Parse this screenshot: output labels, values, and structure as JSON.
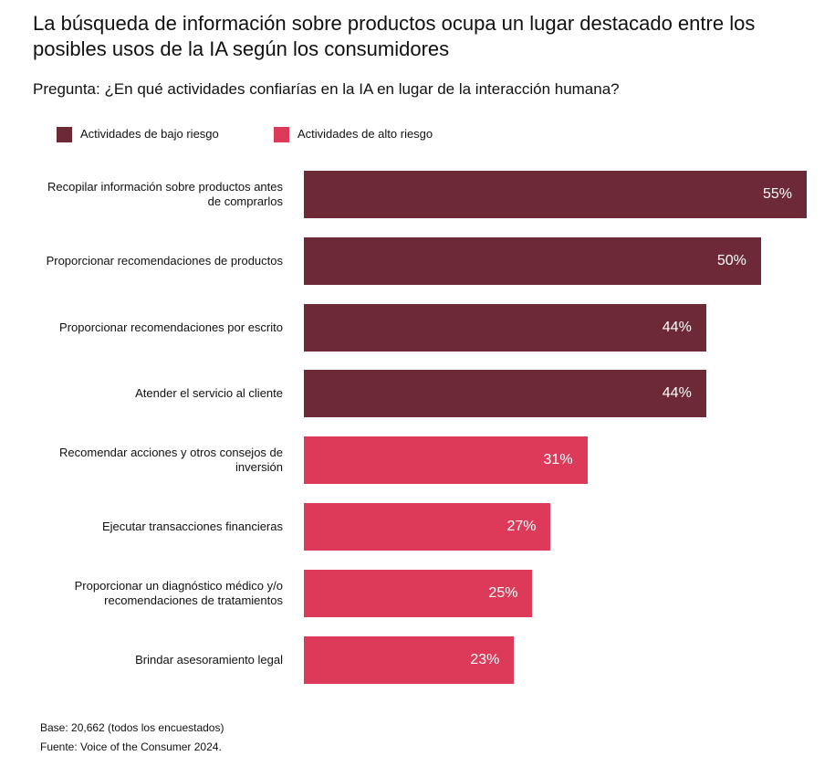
{
  "chart_data": {
    "type": "bar",
    "orientation": "horizontal",
    "title": "La búsqueda de información sobre productos ocupa un lugar destacado entre los posibles usos de la IA según los consumidores",
    "subtitle": "Pregunta: ¿En qué actividades confiarías en la IA en lugar de la interacción humana?",
    "categories": [
      "Recopilar información sobre productos antes de comprarlos",
      "Proporcionar recomendaciones de productos",
      "Proporcionar recomendaciones por escrito",
      "Atender el servicio al cliente",
      "Recomendar acciones y otros consejos de inversión",
      "Ejecutar transacciones financieras",
      "Proporcionar un diagnóstico médico y/o recomendaciones de tratamientos",
      "Brindar asesoramiento legal"
    ],
    "series": [
      {
        "name": "Actividades de bajo riesgo",
        "color": "#6d2935",
        "values": [
          55,
          50,
          44,
          44,
          null,
          null,
          null,
          null
        ],
        "value_labels": [
          "55%",
          "50%",
          "44%",
          "44%",
          null,
          null,
          null,
          null
        ]
      },
      {
        "name": "Actividades de alto riesgo",
        "color": "#dc3a58",
        "values": [
          null,
          null,
          null,
          null,
          31,
          27,
          25,
          23
        ],
        "value_labels": [
          null,
          null,
          null,
          null,
          "31%",
          "27%",
          "25%",
          "23%"
        ]
      }
    ],
    "legend": "top-left",
    "notes": [
      "Base: 20,662 (todos los encuestados)",
      "Fuente: Voice of the Consumer 2024."
    ]
  }
}
